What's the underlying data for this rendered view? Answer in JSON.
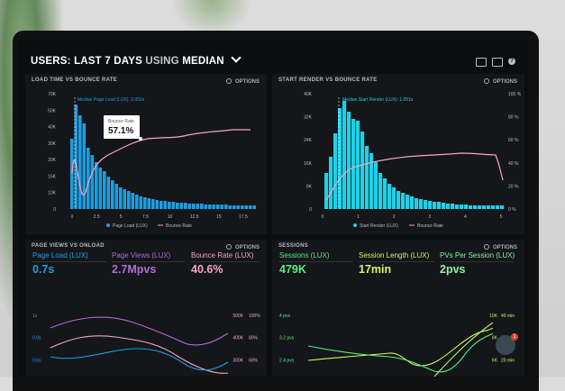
{
  "header": {
    "title_users": "USERS:",
    "title_last": "LAST 7 DAYS",
    "title_using": "USING",
    "title_median": "MEDIAN"
  },
  "panel_load": {
    "title": "LOAD TIME VS BOUNCE RATE",
    "options": "OPTIONS",
    "median_label": "Median Page Load (LUX): 2.050s",
    "tooltip_title": "Bounce Rate",
    "tooltip_value": "57.1%",
    "legend_bar": "Page Load (LUX)",
    "legend_line": "Bounce Rate",
    "ylabels_left": [
      "70K",
      "50K",
      "40K",
      "30K",
      "20K",
      "15K",
      "10K",
      "0"
    ],
    "ylabels_right": [
      "100 %",
      "80 %",
      "60 %",
      "40 %",
      "20 %",
      "0 %"
    ],
    "xlabels": [
      "0",
      "2.5",
      "5",
      "7.5",
      "10",
      "12.5",
      "15",
      "17.5"
    ]
  },
  "panel_render": {
    "title": "START RENDER VS BOUNCE RATE",
    "options": "OPTIONS",
    "median_label": "Median Start Render (LUX): 1.051s",
    "legend_bar": "Start Render (LUX)",
    "legend_line": "Bounce Rate",
    "ylabels_left": [
      "40K",
      "32K",
      "24K",
      "16K",
      "8K",
      "0"
    ],
    "ylabels_right": [
      "100 %",
      "80 %",
      "60 %",
      "40 %",
      "20 %",
      "0 %"
    ],
    "xlabels": [
      "0",
      "1",
      "2",
      "3",
      "4",
      "5"
    ]
  },
  "panel_pageviews": {
    "title": "PAGE VIEWS VS ONLOAD",
    "options": "OPTIONS",
    "m1_label": "Page Load (LUX)",
    "m1_value": "0.7s",
    "m2_label": "Page Views (LUX)",
    "m2_value": "2.7Mpvs",
    "m3_label": "Bounce Rate (LUX)",
    "m3_value": "40.6%",
    "ylabels_left": [
      "1s",
      "0.8s",
      "0.6s",
      "0.4s"
    ],
    "ylabels_mid": [
      "500K",
      "400K",
      "300K",
      "200K"
    ],
    "ylabels_right": [
      "100%",
      "80%",
      "60%",
      "40%"
    ]
  },
  "panel_sessions": {
    "title": "SESSIONS",
    "options": "OPTIONS",
    "m1_label": "Sessions (LUX)",
    "m1_value": "479K",
    "m2_label": "Session Length (LUX)",
    "m2_value": "17min",
    "m3_label": "PVs Per Session (LUX)",
    "m3_value": "2pvs",
    "ylabels_left": [
      "4 pvs",
      "3.2 pvs",
      "2.4 pvs",
      "1.6 pvs"
    ],
    "ylabels_right_a": [
      "10K",
      "8K",
      "6K",
      "4K"
    ],
    "ylabels_right_b": [
      "40 min",
      "30 min",
      "20 min",
      "10 min"
    ]
  },
  "chat": {
    "badge": "1"
  },
  "colors": {
    "blue": "#1e9ee0",
    "cyan": "#1fd1e8",
    "pink": "#f2a6c2",
    "purple": "#b26ad6",
    "green": "#57f07e",
    "yellow": "#d8f45f"
  }
}
